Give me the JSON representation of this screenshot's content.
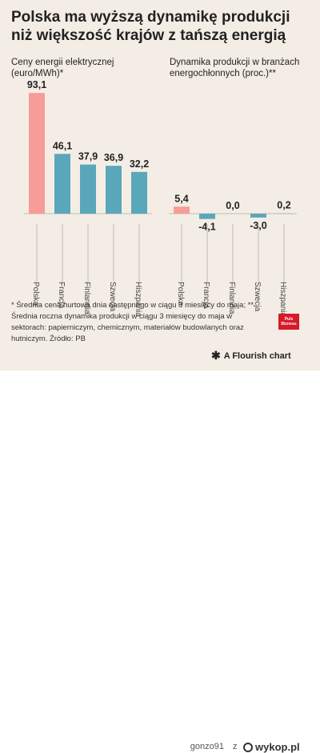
{
  "title": "Polska ma wyższą dynamikę produkcji niż większość krajów z tańszą energią",
  "chart_data": [
    {
      "type": "bar",
      "title": "Ceny energii elektrycznej (euro/MWh)*",
      "categories": [
        "Polska",
        "Francja",
        "Finlandia",
        "Szwecja",
        "Hiszpania"
      ],
      "values": [
        93.1,
        46.1,
        37.9,
        36.9,
        32.2
      ],
      "value_labels": [
        "93,1",
        "46,1",
        "37,9",
        "36,9",
        "32,2"
      ],
      "colors": [
        "#f79c97",
        "#5aa7b9",
        "#5aa7b9",
        "#5aa7b9",
        "#5aa7b9"
      ],
      "ylim": [
        0,
        93.1
      ],
      "grid": false
    },
    {
      "type": "bar",
      "title": "Dynamika produkcji w branżach energochłonnych (proc.)**",
      "categories": [
        "Polska",
        "Francja",
        "Finlandia",
        "Szwecja",
        "Hiszpania"
      ],
      "values": [
        5.4,
        -4.1,
        0.0,
        -3.0,
        0.2
      ],
      "value_labels": [
        "5,4",
        "-4,1",
        "0,0",
        "-3,0",
        "0,2"
      ],
      "colors": [
        "#f79c97",
        "#5aa7b9",
        "#5aa7b9",
        "#5aa7b9",
        "#5aa7b9"
      ],
      "ylim": [
        -4.1,
        93.1
      ],
      "grid": false
    }
  ],
  "footnote": "* Średnia cena hurtowa dnia następnego w ciągu 3 miesięcy do maja; ** Średnia roczna dynamika produkcji w ciągu 3 miesięcy do maja w sektorach: papierniczym, chemicznym, materiałów budowlanych oraz hutniczym. Źródło: PB",
  "logo_text": "Puls Biznesu",
  "credit": "A Flourish chart",
  "watermark": {
    "user": "gonzo91",
    "separator": "z",
    "site": "wykop.pl"
  },
  "colors": {
    "background": "#f4ede5",
    "highlight": "#f79c97",
    "bar": "#5aa7b9"
  }
}
